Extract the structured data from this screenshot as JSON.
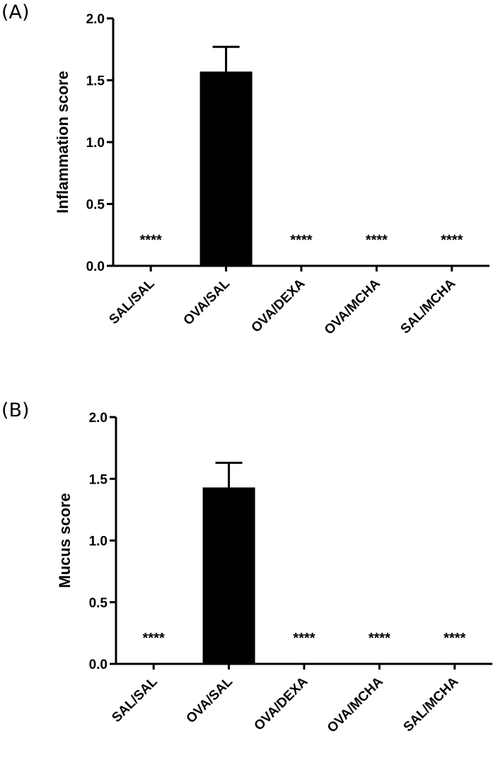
{
  "chart_data": [
    {
      "type": "bar",
      "panel_label": "(A)",
      "ylabel": "Inflammation score",
      "ylim": [
        0,
        2.0
      ],
      "yticks": [
        "0.0",
        "0.5",
        "1.0",
        "1.5",
        "2.0"
      ],
      "categories": [
        "SAL/SAL",
        "OVA/SAL",
        "OVA/DEXA",
        "OVA/MCHA",
        "SAL/MCHA"
      ],
      "values": [
        0,
        1.57,
        0,
        0,
        0
      ],
      "errors": [
        0,
        0.2,
        0,
        0,
        0
      ],
      "annotations": [
        "****",
        "",
        "****",
        "****",
        "****"
      ],
      "bar_color": "#000000"
    },
    {
      "type": "bar",
      "panel_label": "(B)",
      "ylabel": "Mucus score",
      "ylim": [
        0,
        2.0
      ],
      "yticks": [
        "0.0",
        "0.5",
        "1.0",
        "1.5",
        "2.0"
      ],
      "categories": [
        "SAL/SAL",
        "OVA/SAL",
        "OVA/DEXA",
        "OVA/MCHA",
        "SAL/MCHA"
      ],
      "values": [
        0,
        1.43,
        0,
        0,
        0
      ],
      "errors": [
        0,
        0.2,
        0,
        0,
        0
      ],
      "annotations": [
        "****",
        "",
        "****",
        "****",
        "****"
      ],
      "bar_color": "#000000"
    }
  ]
}
